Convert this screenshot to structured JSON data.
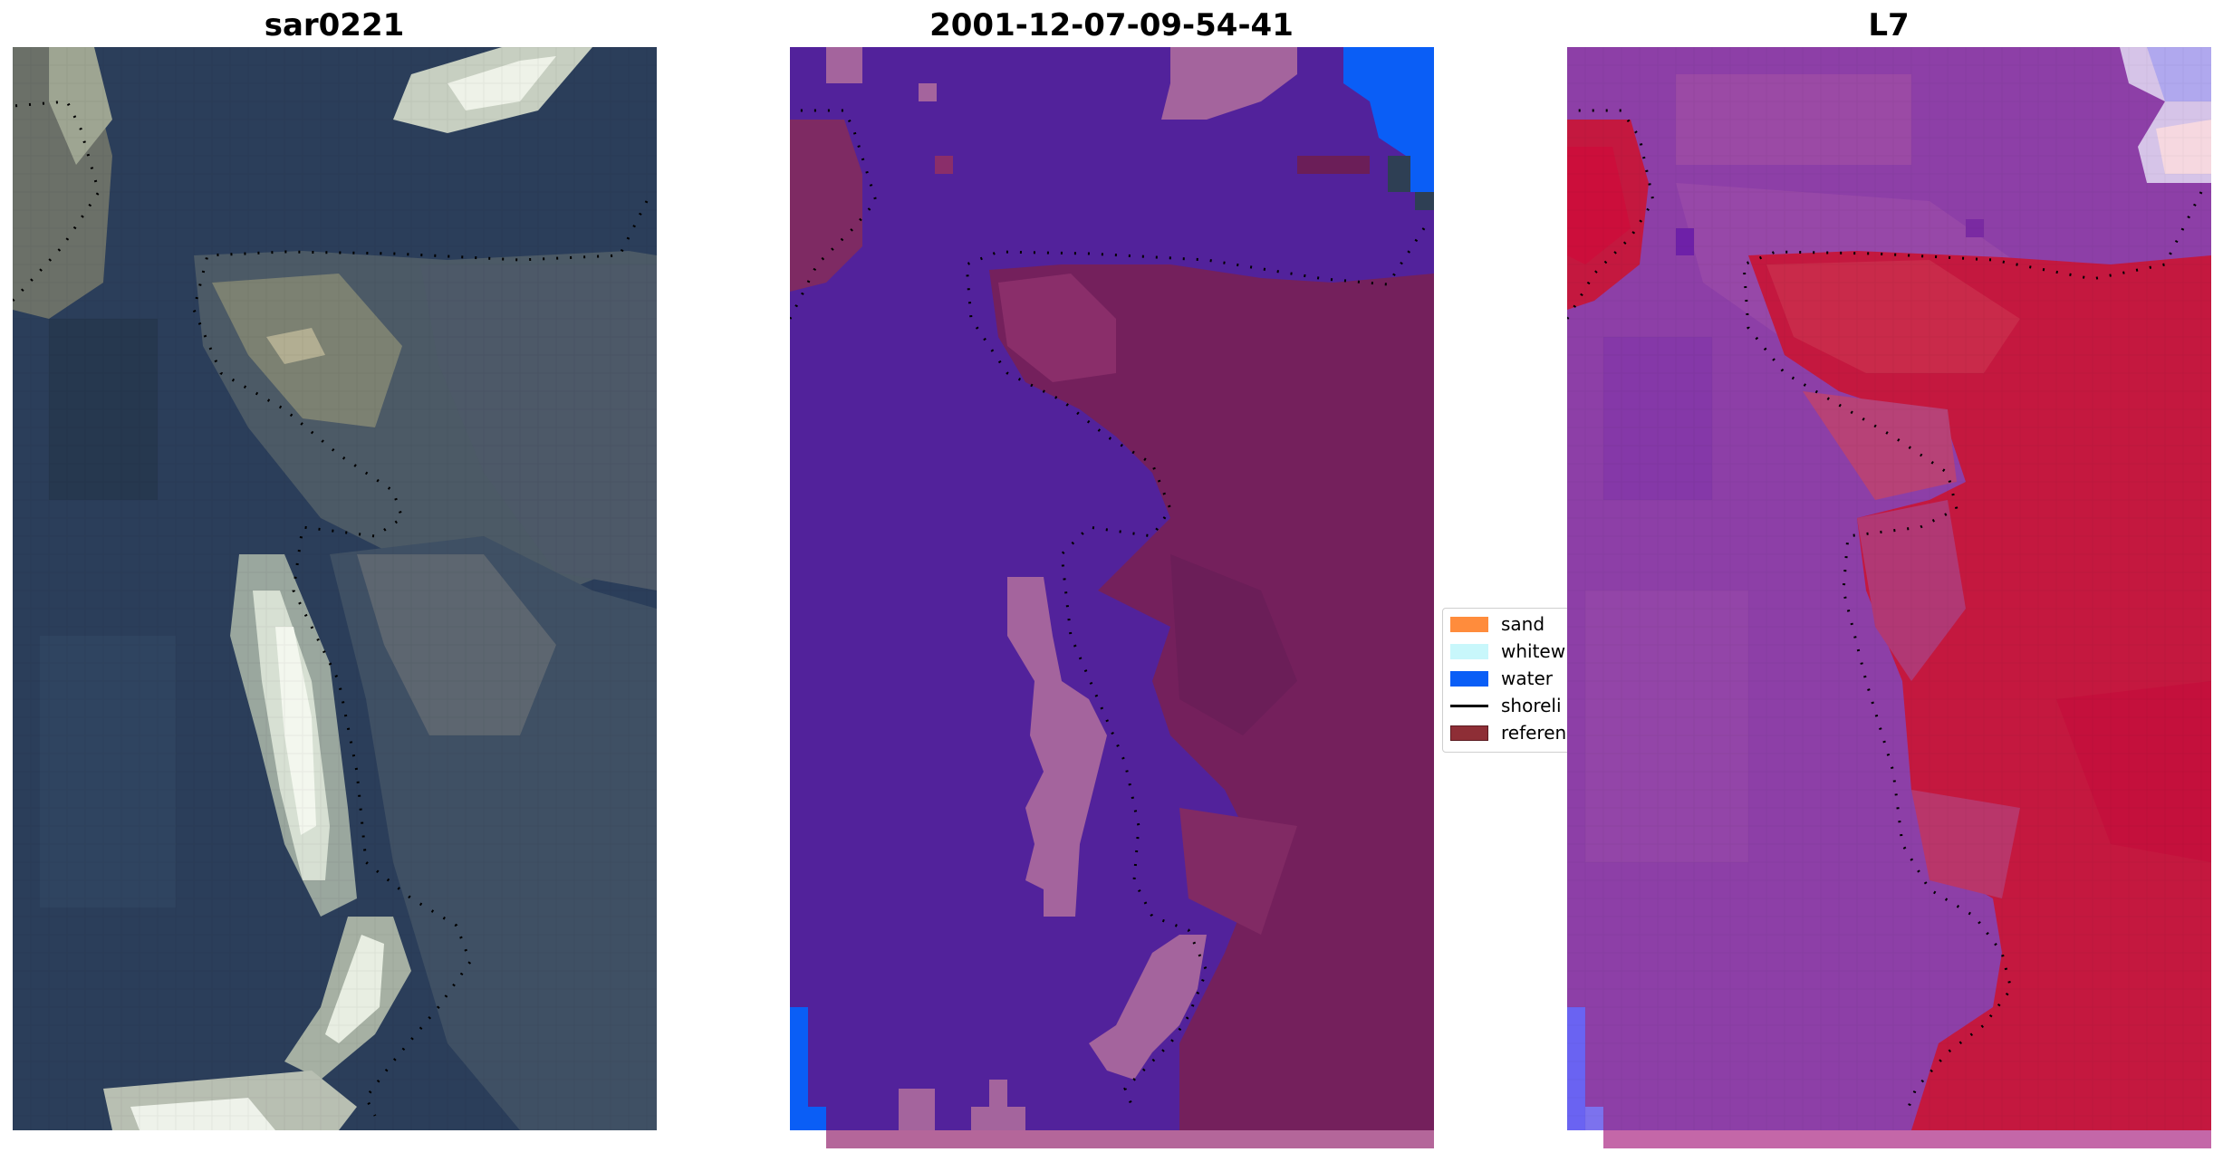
{
  "titles": {
    "left": "sar0221",
    "middle": "2001-12-07-09-54-41",
    "right": "L7"
  },
  "legend": {
    "items": [
      {
        "label": "sand",
        "color": "#ff8c3c",
        "kind": "patch"
      },
      {
        "label": "whitew",
        "color": "#c8f7fb",
        "kind": "patch"
      },
      {
        "label": "water",
        "color": "#0a5ef6",
        "kind": "patch"
      },
      {
        "label": "shoreli",
        "color": "#000000",
        "kind": "line"
      },
      {
        "label": "referen",
        "color": "#8e2e36",
        "kind": "patch"
      }
    ]
  },
  "colors": {
    "sea_class": "#52229b",
    "land_class": "#74205c",
    "whitewater_class": "#a4649d",
    "water_class": "#0a5ef6",
    "rgb_dark": "#2b3e5a",
    "rgb_bright": "#eef2e8",
    "l7_sea": "#8d3fa7",
    "l7_land": "#c4183f"
  }
}
